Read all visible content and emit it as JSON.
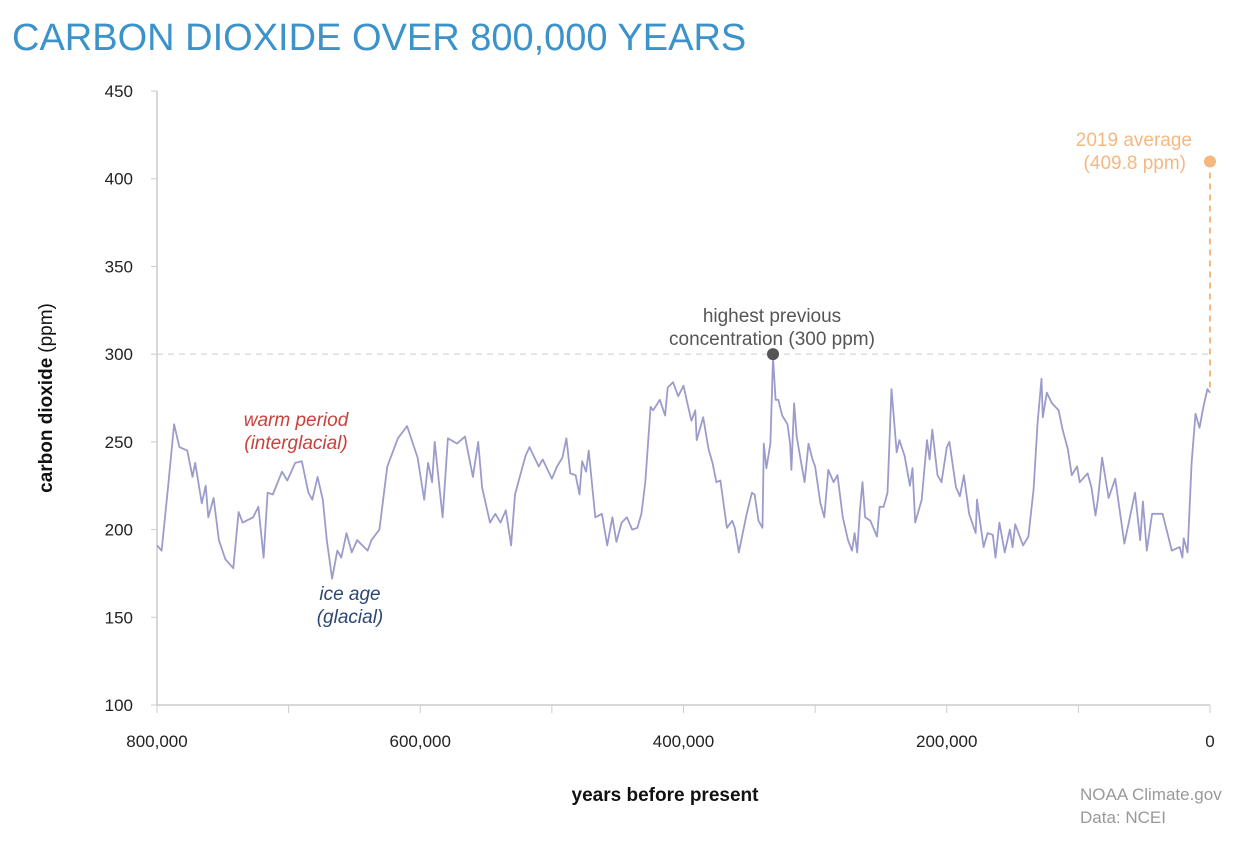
{
  "chart_data": {
    "type": "line",
    "title": "CARBON DIOXIDE OVER 800,000 YEARS",
    "xlabel": "years before present",
    "ylabel_bold": "carbon dioxide",
    "ylabel_unit": "(ppm)",
    "xlim": [
      800000,
      0
    ],
    "ylim": [
      100,
      450
    ],
    "x_ticks": [
      800000,
      600000,
      400000,
      200000,
      0
    ],
    "x_tick_labels": [
      "800,000",
      "600,000",
      "400,000",
      "200,000",
      "0"
    ],
    "x_minor_ticks": [
      700000,
      500000,
      300000,
      100000
    ],
    "y_ticks": [
      100,
      150,
      200,
      250,
      300,
      350,
      400,
      450
    ],
    "y_tick_labels": [
      "100",
      "150",
      "200",
      "250",
      "300",
      "350",
      "400",
      "450"
    ],
    "grid": false,
    "reference_line": {
      "y": 300
    },
    "colors": {
      "series": "#9c9ccc",
      "title": "#3c93c9",
      "current": "#f5b880",
      "previous_max": "#555555",
      "warm": "#c9413b",
      "ice": "#2c4773",
      "axis": "#cccccc"
    },
    "series": [
      {
        "x": [
          800000,
          796500,
          792000,
          787000,
          783000,
          777000,
          773000,
          771000,
          766000,
          763000,
          761000,
          757000,
          753000,
          748000,
          742000,
          738000,
          735000,
          727000,
          723000,
          719000,
          716000,
          712000,
          705000,
          701000,
          695000,
          690000,
          685000,
          682000,
          678000,
          674000,
          671000,
          667000,
          663000,
          660000,
          656000,
          652000,
          648000,
          640000,
          637000,
          631000,
          625000,
          617000,
          610000,
          602000,
          597000,
          594000,
          591000,
          589000,
          583000,
          579000,
          572000,
          566000,
          560000,
          556000,
          553000,
          547000,
          543000,
          539000,
          535000,
          531000,
          528000,
          520000,
          517000,
          510000,
          507000,
          500000,
          496000,
          492000,
          489000,
          486000,
          482000,
          479000,
          477000,
          474000,
          472000,
          467000,
          462000,
          458000,
          454000,
          451000,
          447000,
          443000,
          439000,
          435000,
          432000,
          429000,
          425000,
          423000,
          418000,
          414000,
          412000,
          408000,
          404000,
          400000,
          397000,
          394000,
          391000,
          390000,
          385000,
          381000,
          378000,
          375000,
          372000,
          367000,
          363000,
          361000,
          358000,
          352000,
          348000,
          346000,
          343000,
          340000,
          339000,
          337000,
          334000,
          332000,
          330000,
          328000,
          325000,
          321000,
          319000,
          318000,
          316000,
          314000,
          311000,
          308000,
          305000,
          302000,
          300000,
          296000,
          293000,
          290000,
          286000,
          283000,
          279000,
          275000,
          272000,
          270000,
          268000,
          266000,
          264000,
          262000,
          258000,
          253000,
          251000,
          248000,
          245000,
          242000,
          238000,
          236000,
          232000,
          228000,
          226000,
          224000,
          219000,
          215000,
          213000,
          211000,
          207000,
          204000,
          200000,
          198000,
          193000,
          190000,
          187000,
          183000,
          178000,
          177000,
          172000,
          169000,
          165000,
          163000,
          160000,
          156000,
          152000,
          150000,
          148000,
          142000,
          138000,
          134000,
          131000,
          128000,
          127000,
          124000,
          120000,
          115000,
          112000,
          108000,
          105000,
          101000,
          99000,
          93000,
          90000,
          87000,
          85000,
          82000,
          77000,
          72000,
          65000,
          57000,
          53000,
          51000,
          48000,
          44000,
          36000,
          29000,
          23000,
          21000,
          20000,
          17000,
          14000,
          11000,
          8000,
          5000,
          2000,
          0
        ],
        "y": [
          191,
          188,
          221,
          260,
          247,
          245,
          230,
          238,
          215,
          225,
          207,
          218,
          194,
          183,
          178,
          210,
          204,
          207,
          213,
          184,
          221,
          220,
          233,
          228,
          238,
          239,
          221,
          217,
          230,
          217,
          194,
          172,
          188,
          184,
          198,
          187,
          194,
          188,
          194,
          200,
          236,
          252,
          259,
          241,
          217,
          238,
          227,
          250,
          207,
          252,
          249,
          253,
          230,
          250,
          224,
          204,
          209,
          204,
          211,
          191,
          220,
          242,
          247,
          236,
          240,
          229,
          236,
          241,
          252,
          232,
          231,
          220,
          239,
          233,
          245,
          207,
          209,
          191,
          207,
          193,
          204,
          207,
          200,
          201,
          209,
          227,
          270,
          268,
          274,
          265,
          281,
          284,
          276,
          282,
          272,
          262,
          268,
          251,
          264,
          246,
          238,
          227,
          228,
          201,
          205,
          201,
          187,
          209,
          221,
          220,
          205,
          201,
          249,
          235,
          249,
          298,
          274,
          274,
          265,
          260,
          249,
          234,
          272,
          253,
          240,
          227,
          249,
          240,
          236,
          215,
          207,
          234,
          227,
          231,
          207,
          194,
          188,
          198,
          187,
          211,
          227,
          207,
          205,
          196,
          213,
          213,
          221,
          280,
          244,
          251,
          242,
          225,
          235,
          204,
          217,
          251,
          240,
          257,
          231,
          227,
          247,
          250,
          224,
          219,
          231,
          209,
          198,
          217,
          190,
          198,
          197,
          184,
          204,
          187,
          200,
          190,
          203,
          191,
          196,
          223,
          261,
          286,
          264,
          278,
          272,
          268,
          257,
          246,
          231,
          236,
          227,
          232,
          224,
          208,
          218,
          241,
          218,
          229,
          192,
          221,
          194,
          216,
          188,
          209,
          209,
          188,
          190,
          184,
          195,
          187,
          238,
          266,
          258,
          270,
          280,
          278
        ]
      }
    ],
    "annotations": {
      "previous_max_line1": "highest previous",
      "previous_max_line2": "concentration (300 ppm)",
      "previous_max_point": {
        "x": 332000,
        "y": 300
      },
      "current_line1": "2019 average",
      "current_line2": "(409.8 ppm)",
      "current_point": {
        "x": 0,
        "y": 409.8
      },
      "warm_line1": "warm period",
      "warm_line2": "(interglacial)",
      "ice_line1": "ice age",
      "ice_line2": "(glacial)"
    }
  },
  "credits": {
    "line1": "NOAA Climate.gov",
    "line2": "Data: NCEI"
  }
}
